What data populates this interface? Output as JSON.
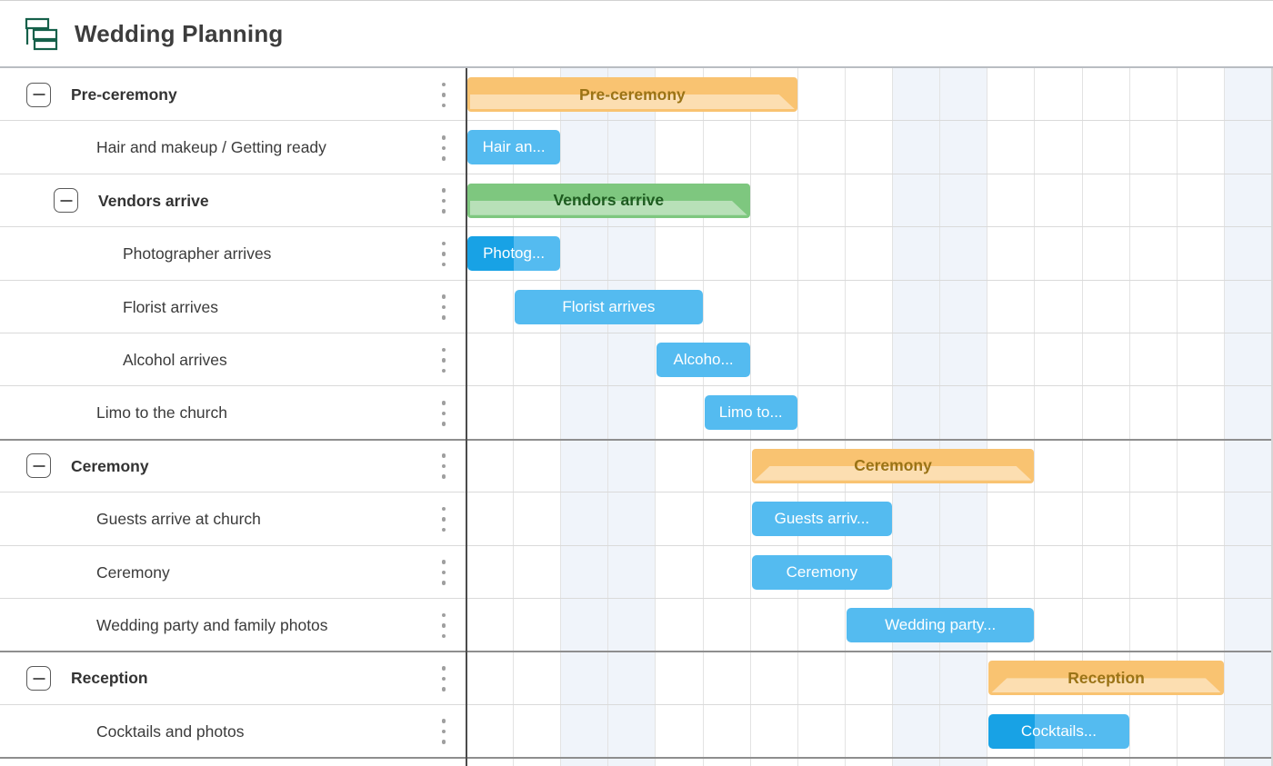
{
  "app": {
    "title": "Wedding Planning"
  },
  "colors": {
    "task_bar": "#54bbf0",
    "task_progress": "#18a2e5",
    "summary_orange": "#f9c371",
    "summary_orange_text": "#9a7316",
    "summary_green": "#7ec77f",
    "summary_green_text": "#1e5b20",
    "weekend_column": "#f0f4fa",
    "gridline": "#e3e3e3",
    "logo_green": "#15604a"
  },
  "rows": [
    {
      "label": "Pre-ceremony",
      "type": "section",
      "depth": 1
    },
    {
      "label": "Hair and makeup / Getting ready",
      "type": "task",
      "depth": 2
    },
    {
      "label": "Vendors arrive",
      "type": "section",
      "depth": 2
    },
    {
      "label": "Photographer arrives",
      "type": "task",
      "depth": 3
    },
    {
      "label": "Florist arrives",
      "type": "task",
      "depth": 3
    },
    {
      "label": "Alcohol arrives",
      "type": "task",
      "depth": 3
    },
    {
      "label": "Limo to the church",
      "type": "task",
      "depth": 2
    },
    {
      "label": "Ceremony",
      "type": "section",
      "depth": 1
    },
    {
      "label": "Guests arrive at church",
      "type": "task",
      "depth": 2
    },
    {
      "label": "Ceremony",
      "type": "task",
      "depth": 2
    },
    {
      "label": "Wedding party and family photos",
      "type": "task",
      "depth": 2
    },
    {
      "label": "Reception",
      "type": "section",
      "depth": 1
    },
    {
      "label": "Cocktails and photos",
      "type": "task",
      "depth": 2
    }
  ],
  "chart_data": {
    "type": "gantt",
    "column_count": 17,
    "shaded_columns": [
      2,
      3,
      9,
      10,
      16
    ],
    "section_separator_rows": [
      7,
      11,
      13
    ],
    "bars": [
      {
        "row": 0,
        "label": "Pre-ceremony",
        "kind": "summary",
        "color": "orange",
        "start": 0,
        "end": 7,
        "flush_left": true
      },
      {
        "row": 1,
        "label": "Hair an...",
        "kind": "task",
        "start": 0,
        "end": 2
      },
      {
        "row": 2,
        "label": "Vendors arrive",
        "kind": "summary",
        "color": "green",
        "start": 0,
        "end": 6,
        "flush_left": true
      },
      {
        "row": 3,
        "label": "Photog...",
        "kind": "task",
        "start": 0,
        "end": 2,
        "progress": 0.5
      },
      {
        "row": 4,
        "label": "Florist arrives",
        "kind": "task",
        "start": 1,
        "end": 5
      },
      {
        "row": 5,
        "label": "Alcoho...",
        "kind": "task",
        "start": 4,
        "end": 6
      },
      {
        "row": 6,
        "label": "Limo to...",
        "kind": "task",
        "start": 5,
        "end": 7
      },
      {
        "row": 7,
        "label": "Ceremony",
        "kind": "summary",
        "color": "orange",
        "start": 6,
        "end": 12
      },
      {
        "row": 8,
        "label": "Guests arriv...",
        "kind": "task",
        "start": 6,
        "end": 9
      },
      {
        "row": 9,
        "label": "Ceremony",
        "kind": "task",
        "start": 6,
        "end": 9
      },
      {
        "row": 10,
        "label": "Wedding party...",
        "kind": "task",
        "start": 8,
        "end": 12
      },
      {
        "row": 11,
        "label": "Reception",
        "kind": "summary",
        "color": "orange",
        "start": 11,
        "end": 16
      },
      {
        "row": 12,
        "label": "Cocktails...",
        "kind": "task",
        "start": 11,
        "end": 14,
        "progress": 0.33
      }
    ]
  }
}
